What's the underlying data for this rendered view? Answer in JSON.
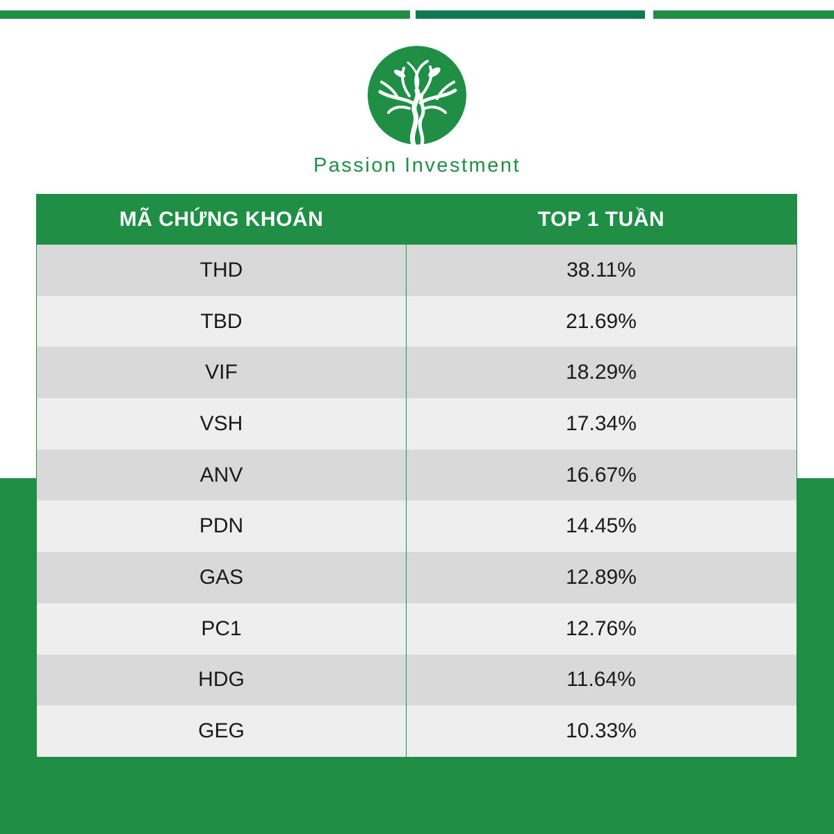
{
  "brand": {
    "name": "Passion Investment",
    "colors": {
      "primary": "#1e8f45",
      "accent": "#0f7a52"
    },
    "logo_icon": "tree-in-circle-icon"
  },
  "table": {
    "headers": [
      "MÃ CHỨNG KHOÁN",
      "TOP 1 TUẦN"
    ],
    "rows": [
      {
        "code": "THD",
        "value": "38.11%"
      },
      {
        "code": "TBD",
        "value": "21.69%"
      },
      {
        "code": "VIF",
        "value": "18.29%"
      },
      {
        "code": "VSH",
        "value": "17.34%"
      },
      {
        "code": "ANV",
        "value": "16.67%"
      },
      {
        "code": "PDN",
        "value": "14.45%"
      },
      {
        "code": "GAS",
        "value": "12.89%"
      },
      {
        "code": "PC1",
        "value": "12.76%"
      },
      {
        "code": "HDG",
        "value": "11.64%"
      },
      {
        "code": "GEG",
        "value": "10.33%"
      }
    ]
  }
}
